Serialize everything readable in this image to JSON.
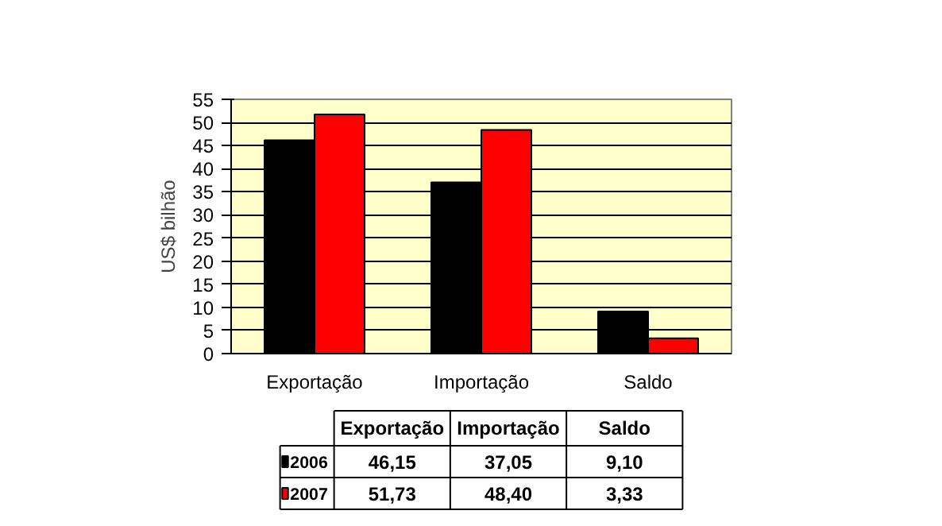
{
  "chart_data": {
    "type": "bar",
    "ylabel": "US$ bilhão",
    "categories": [
      "Exportação",
      "Importação",
      "Saldo"
    ],
    "series": [
      {
        "name": "2006",
        "color": "#000000",
        "values": [
          46.15,
          37.05,
          9.1
        ],
        "value_labels": [
          "46,15",
          "37,05",
          "9,10"
        ]
      },
      {
        "name": "2007",
        "color": "#ff0000",
        "values": [
          51.73,
          48.4,
          3.33
        ],
        "value_labels": [
          "51,73",
          "48,40",
          "3,33"
        ]
      }
    ],
    "ylim": [
      0,
      55
    ],
    "yticks": [
      0,
      5,
      10,
      15,
      20,
      25,
      30,
      35,
      40,
      45,
      50,
      55
    ],
    "grid": "y",
    "legend": "bottom"
  }
}
